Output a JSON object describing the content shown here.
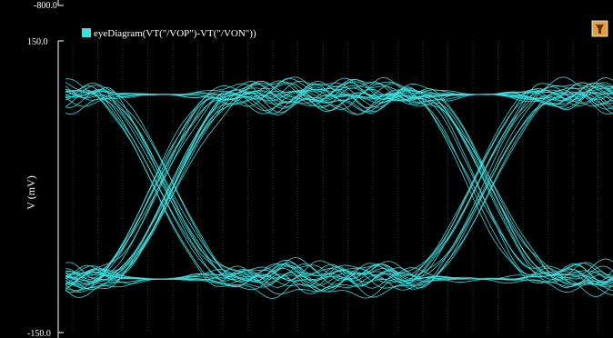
{
  "window": {
    "prev_panel_tick_label": "-800.0"
  },
  "toolbar": {
    "filter_icon": "funnel-icon"
  },
  "colors": {
    "background": "#000000",
    "trace": "#3ee0e0",
    "grid": "#1f3a3a",
    "axis": "#ffffff",
    "filter_button_bg": "#e0a040"
  },
  "chart_data": {
    "type": "line",
    "title": "",
    "subtitle": "",
    "xlabel": "",
    "ylabel": "V (mV)",
    "ylim": [
      -150.0,
      150.0
    ],
    "y_tick_labels": [
      "150.0",
      "-150.0"
    ],
    "grid": "on",
    "legend": {
      "placement": "top-left",
      "entries": [
        "eyeDiagram(VT(\"/VOP\")-VT(\"/VON\"))"
      ]
    },
    "series": [
      {
        "name": "eyeDiagram(VT(\"/VOP\")-VT(\"/VON\"))",
        "pattern": "eye diagram",
        "high_level_mV": 95,
        "low_level_mV": -95,
        "crossing_level_mV": 0,
        "x": [
          0.0,
          0.18,
          0.76,
          1.0
        ],
        "eye_crossings_fraction_of_x": [
          0.18,
          0.76
        ],
        "trace_count": 44
      }
    ]
  }
}
